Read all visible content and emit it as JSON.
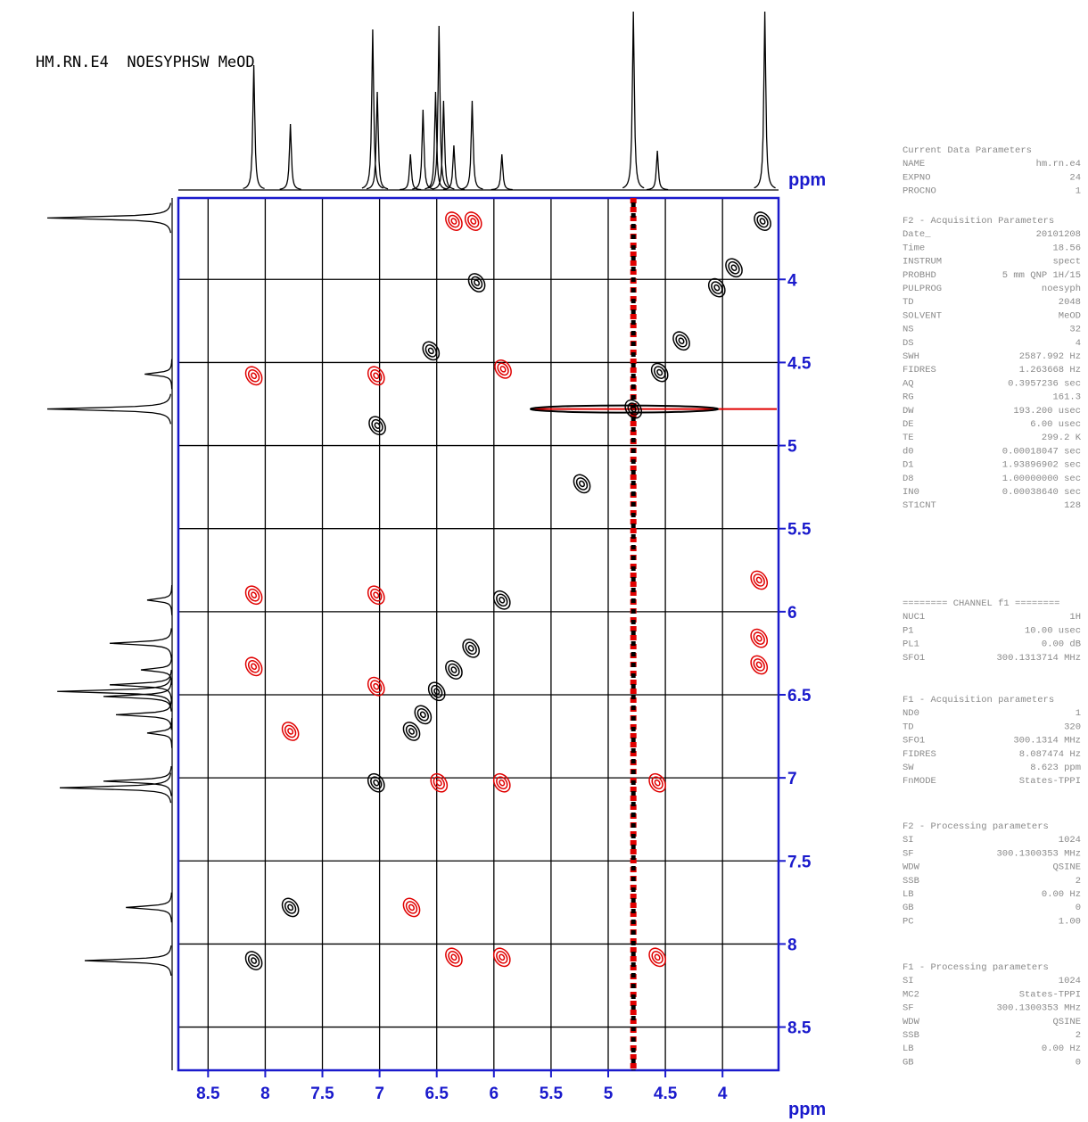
{
  "chart_data": {
    "type": "scatter",
    "title": "HM.RN.E4  NOESYPHSW MeOD",
    "xlabel": "ppm",
    "ylabel": "ppm",
    "xlim": [
      8.76,
      3.51
    ],
    "ylim": [
      3.51,
      8.76
    ],
    "xticks": [
      8.5,
      8.0,
      7.5,
      7.0,
      6.5,
      6.0,
      5.5,
      5.0,
      4.5,
      4.0
    ],
    "yticks": [
      4.0,
      4.5,
      5.0,
      5.5,
      6.0,
      6.5,
      7.0,
      7.5,
      8.0,
      8.5
    ],
    "grid": true,
    "series": [
      {
        "color": "#000000",
        "x": [
          3.65,
          3.9,
          4.05,
          4.36,
          4.55,
          5.93,
          6.2,
          6.35,
          6.5,
          6.62,
          6.72,
          7.03,
          7.78,
          8.1,
          6.15,
          6.55,
          5.23,
          7.02,
          4.78
        ],
        "y": [
          3.65,
          3.93,
          4.05,
          4.37,
          4.56,
          5.93,
          6.22,
          6.35,
          6.48,
          6.62,
          6.72,
          7.03,
          7.78,
          8.1,
          4.02,
          4.43,
          5.23,
          4.88,
          4.78
        ]
      },
      {
        "color": "#e00000",
        "x": [
          6.35,
          6.18,
          8.1,
          7.03,
          8.1,
          7.03,
          8.1,
          7.03,
          7.78,
          6.72,
          6.48,
          5.93,
          4.57,
          6.35,
          5.93,
          4.57,
          3.68,
          3.68,
          3.68,
          5.92
        ],
        "y": [
          3.65,
          3.65,
          4.58,
          4.58,
          5.9,
          5.9,
          6.33,
          6.45,
          6.72,
          7.78,
          7.03,
          7.03,
          7.03,
          8.08,
          8.08,
          8.08,
          5.81,
          6.16,
          6.32,
          4.54
        ]
      }
    ],
    "ridges": [
      {
        "x": 4.78
      },
      {
        "y": 4.78
      }
    ],
    "projection": {
      "x": [
        8.1,
        7.78,
        7.06,
        7.02,
        6.73,
        6.62,
        6.51,
        6.48,
        6.44,
        6.35,
        6.19,
        5.93,
        4.78,
        4.57,
        3.63
      ],
      "values": [
        0.7,
        0.37,
        0.9,
        0.55,
        0.2,
        0.45,
        0.55,
        0.92,
        0.5,
        0.25,
        0.5,
        0.2,
        1.0,
        0.22,
        1.0
      ]
    }
  },
  "parameters": [
    {
      "header": "Current Data Parameters",
      "rows": [
        [
          "NAME",
          "hm.rn.e4"
        ],
        [
          "EXPNO",
          "24"
        ],
        [
          "PROCNO",
          "1"
        ]
      ]
    },
    {
      "header": "F2 - Acquisition Parameters",
      "rows": [
        [
          "Date_",
          "20101208"
        ],
        [
          "Time",
          "18.56"
        ],
        [
          "INSTRUM",
          "spect"
        ],
        [
          "PROBHD",
          "5 mm QNP 1H/15"
        ],
        [
          "PULPROG",
          "noesyph"
        ],
        [
          "TD",
          "2048"
        ],
        [
          "SOLVENT",
          "MeOD"
        ],
        [
          "NS",
          "32"
        ],
        [
          "DS",
          "4"
        ],
        [
          "SWH",
          "2587.992 Hz"
        ],
        [
          "FIDRES",
          "1.263668 Hz"
        ],
        [
          "AQ",
          "0.3957236 sec"
        ],
        [
          "RG",
          "161.3"
        ],
        [
          "DW",
          "193.200 usec"
        ],
        [
          "DE",
          "6.00 usec"
        ],
        [
          "TE",
          "299.2 K"
        ],
        [
          "d0",
          "0.00018047 sec"
        ],
        [
          "D1",
          "1.93896902 sec"
        ],
        [
          "D8",
          "1.00000000 sec"
        ],
        [
          "IN0",
          "0.00038640 sec"
        ],
        [
          "ST1CNT",
          "128"
        ]
      ]
    },
    {
      "header": "======== CHANNEL f1 ========",
      "rows": [
        [
          "NUC1",
          "1H"
        ],
        [
          "P1",
          "10.00 usec"
        ],
        [
          "PL1",
          "0.00 dB"
        ],
        [
          "SFO1",
          "300.1313714 MHz"
        ]
      ]
    },
    {
      "header": "F1 - Acquisition parameters",
      "rows": [
        [
          "ND0",
          "1"
        ],
        [
          "TD",
          "320"
        ],
        [
          "SFO1",
          "300.1314 MHz"
        ],
        [
          "FIDRES",
          "8.087474 Hz"
        ],
        [
          "SW",
          "8.623 ppm"
        ],
        [
          "FnMODE",
          "States-TPPI"
        ]
      ]
    },
    {
      "header": "F2 - Processing parameters",
      "rows": [
        [
          "SI",
          "1024"
        ],
        [
          "SF",
          "300.1300353 MHz"
        ],
        [
          "WDW",
          "QSINE"
        ],
        [
          "SSB",
          "2"
        ],
        [
          "LB",
          "0.00 Hz"
        ],
        [
          "GB",
          "0"
        ],
        [
          "PC",
          "1.00"
        ]
      ]
    },
    {
      "header": "F1 - Processing parameters",
      "rows": [
        [
          "SI",
          "1024"
        ],
        [
          "MC2",
          "States-TPPI"
        ],
        [
          "SF",
          "300.1300353 MHz"
        ],
        [
          "WDW",
          "QSINE"
        ],
        [
          "SSB",
          "2"
        ],
        [
          "LB",
          "0.00 Hz"
        ],
        [
          "GB",
          "0"
        ]
      ]
    }
  ]
}
